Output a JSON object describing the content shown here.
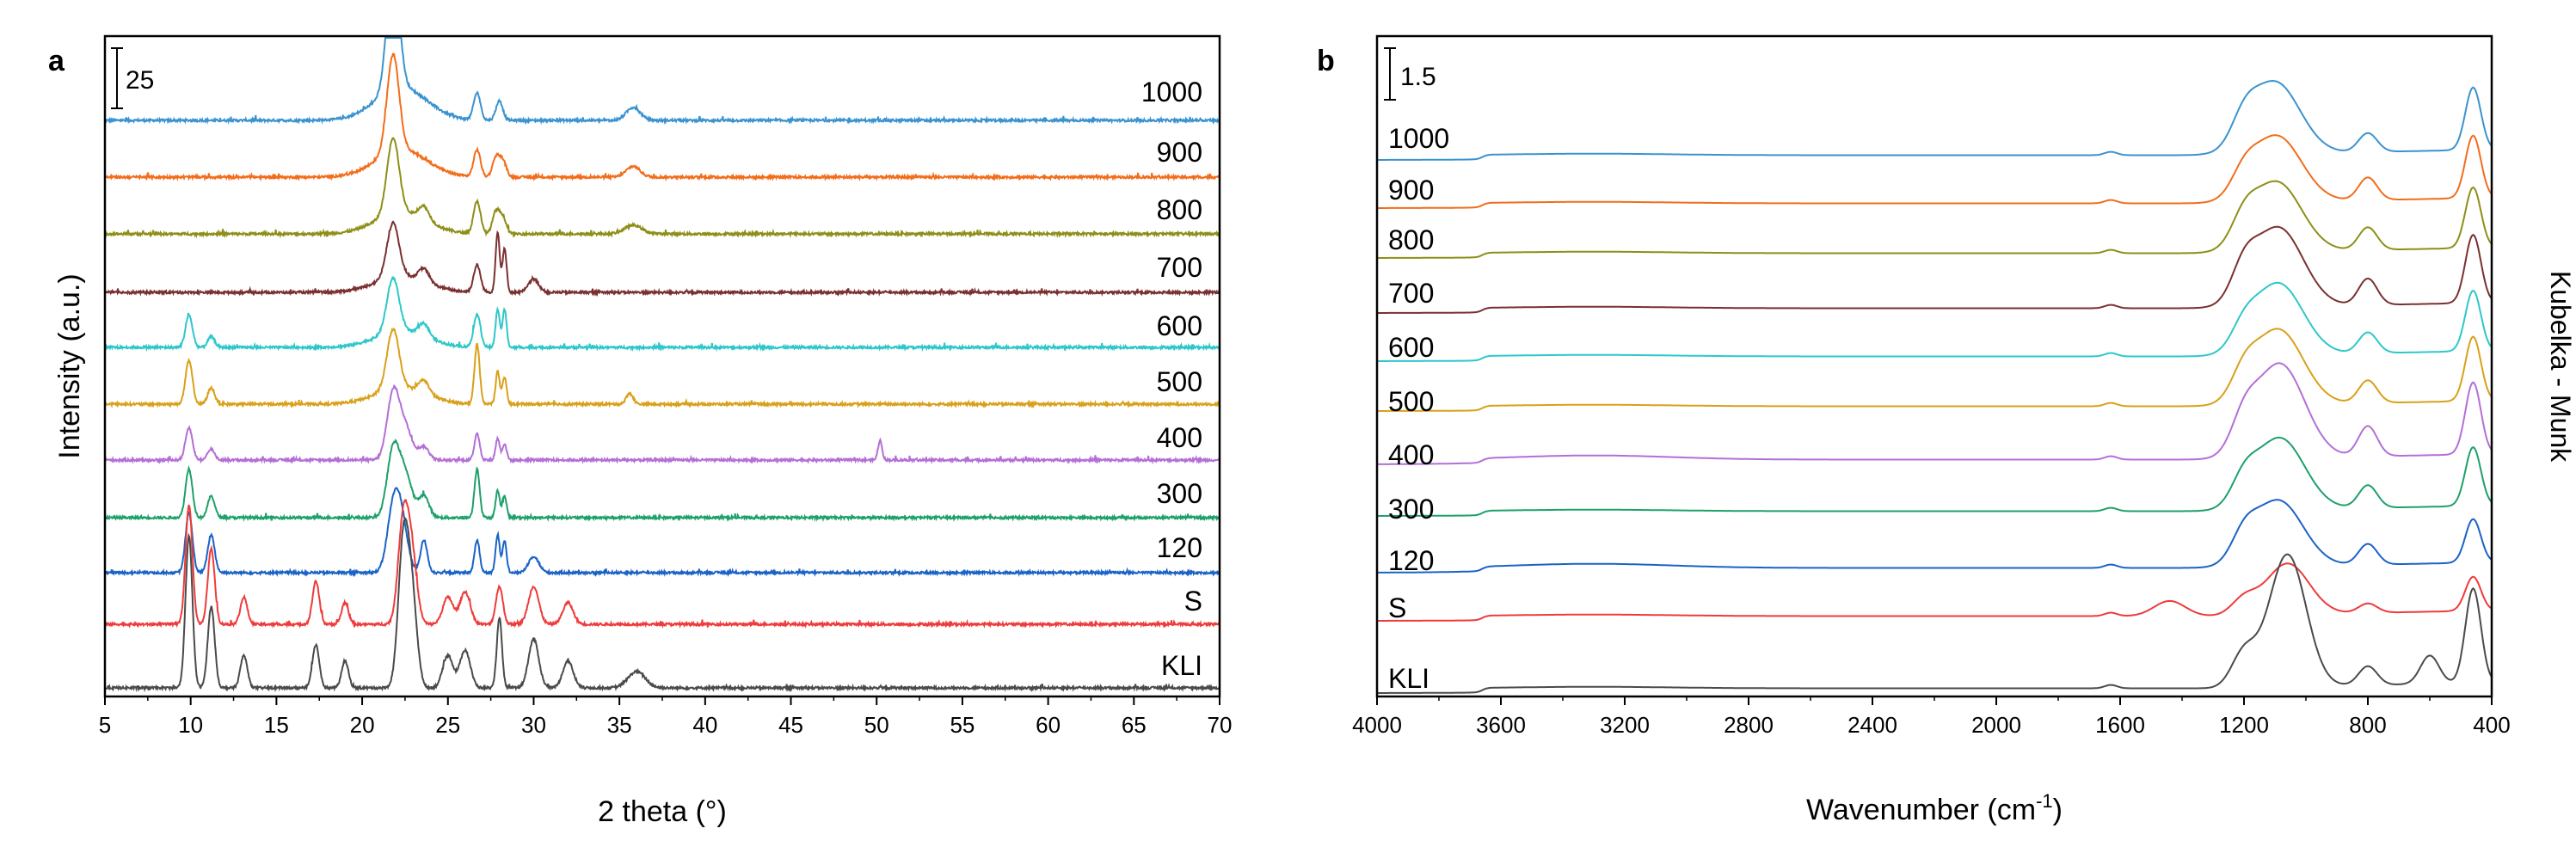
{
  "chart_data": [
    {
      "panel": "a",
      "type": "line",
      "xlabel": "2 theta (°)",
      "ylabel": "Intensity (a.u.)",
      "xlim": [
        5,
        70
      ],
      "xticks": [
        5,
        10,
        15,
        20,
        25,
        30,
        35,
        40,
        45,
        50,
        55,
        60,
        65,
        70
      ],
      "scale_bar": {
        "label": "25",
        "value": 25
      },
      "grid": false,
      "series": [
        {
          "name": "1000",
          "color": "#3a93cf",
          "baseline": 1000,
          "peaks": [
            [
              21.8,
              120,
              0.35
            ],
            [
              22.3,
              30,
              1.5
            ],
            [
              26.7,
              25,
              0.2
            ],
            [
              28.0,
              18,
              0.2
            ],
            [
              35.8,
              12,
              0.4
            ]
          ]
        },
        {
          "name": "900",
          "color": "#f26d1b",
          "baseline": 900,
          "peaks": [
            [
              21.8,
              90,
              0.35
            ],
            [
              22.3,
              25,
              1.5
            ],
            [
              26.7,
              25,
              0.2
            ],
            [
              27.8,
              18,
              0.2
            ],
            [
              28.2,
              15,
              0.2
            ],
            [
              35.8,
              10,
              0.4
            ]
          ]
        },
        {
          "name": "800",
          "color": "#8e8e18",
          "baseline": 800,
          "peaks": [
            [
              21.8,
              70,
              0.35
            ],
            [
              22.3,
              20,
              1.5
            ],
            [
              23.6,
              12,
              0.3
            ],
            [
              26.7,
              30,
              0.2
            ],
            [
              27.8,
              20,
              0.2
            ],
            [
              28.2,
              15,
              0.2
            ],
            [
              35.8,
              8,
              0.5
            ]
          ]
        },
        {
          "name": "700",
          "color": "#7a3030",
          "baseline": 700,
          "peaks": [
            [
              21.8,
              50,
              0.35
            ],
            [
              22.3,
              15,
              1.5
            ],
            [
              23.6,
              12,
              0.3
            ],
            [
              26.7,
              25,
              0.2
            ],
            [
              27.9,
              55,
              0.12
            ],
            [
              28.3,
              40,
              0.12
            ],
            [
              30.0,
              12,
              0.3
            ]
          ]
        },
        {
          "name": "600",
          "color": "#2ec7c9",
          "baseline": 600,
          "peaks": [
            [
              9.9,
              30,
              0.2
            ],
            [
              11.2,
              10,
              0.2
            ],
            [
              21.8,
              50,
              0.35
            ],
            [
              22.3,
              15,
              1.5
            ],
            [
              23.6,
              12,
              0.3
            ],
            [
              26.7,
              30,
              0.2
            ],
            [
              27.9,
              35,
              0.12
            ],
            [
              28.3,
              35,
              0.12
            ]
          ]
        },
        {
          "name": "500",
          "color": "#d9a01a",
          "baseline": 500,
          "peaks": [
            [
              9.9,
              40,
              0.2
            ],
            [
              11.2,
              15,
              0.2
            ],
            [
              21.8,
              55,
              0.35
            ],
            [
              22.3,
              15,
              1.5
            ],
            [
              23.6,
              12,
              0.3
            ],
            [
              26.7,
              55,
              0.15
            ],
            [
              27.9,
              30,
              0.12
            ],
            [
              28.3,
              25,
              0.12
            ],
            [
              35.6,
              10,
              0.2
            ]
          ]
        },
        {
          "name": "400",
          "color": "#b46fd6",
          "baseline": 400,
          "peaks": [
            [
              9.9,
              30,
              0.2
            ],
            [
              11.2,
              10,
              0.2
            ],
            [
              21.8,
              60,
              0.35
            ],
            [
              22.5,
              30,
              0.4
            ],
            [
              23.6,
              12,
              0.3
            ],
            [
              26.7,
              25,
              0.15
            ],
            [
              27.9,
              20,
              0.12
            ],
            [
              28.3,
              15,
              0.12
            ],
            [
              50.2,
              18,
              0.12
            ]
          ]
        },
        {
          "name": "300",
          "color": "#1ea06a",
          "baseline": 300,
          "peaks": [
            [
              9.9,
              45,
              0.2
            ],
            [
              11.2,
              20,
              0.2
            ],
            [
              21.8,
              60,
              0.35
            ],
            [
              22.5,
              40,
              0.4
            ],
            [
              23.6,
              20,
              0.3
            ],
            [
              26.7,
              45,
              0.15
            ],
            [
              27.9,
              25,
              0.12
            ],
            [
              28.3,
              20,
              0.12
            ]
          ]
        },
        {
          "name": "120",
          "color": "#1a63c6",
          "baseline": 120,
          "peaks": [
            [
              9.9,
              55,
              0.2
            ],
            [
              11.2,
              35,
              0.2
            ],
            [
              21.8,
              55,
              0.35
            ],
            [
              22.3,
              45,
              0.35
            ],
            [
              23.6,
              30,
              0.2
            ],
            [
              26.7,
              30,
              0.15
            ],
            [
              27.9,
              35,
              0.12
            ],
            [
              28.3,
              30,
              0.12
            ],
            [
              30.0,
              15,
              0.3
            ]
          ]
        },
        {
          "name": "S",
          "color": "#ee3b3b",
          "baseline": 0,
          "peaks": [
            [
              9.9,
              110,
              0.2
            ],
            [
              11.2,
              70,
              0.2
            ],
            [
              13.1,
              25,
              0.2
            ],
            [
              17.3,
              40,
              0.2
            ],
            [
              19.0,
              20,
              0.2
            ],
            [
              22.4,
              95,
              0.3
            ],
            [
              22.9,
              60,
              0.3
            ],
            [
              25.0,
              25,
              0.3
            ],
            [
              26.0,
              30,
              0.3
            ],
            [
              28.0,
              35,
              0.2
            ],
            [
              30.0,
              35,
              0.3
            ],
            [
              32.0,
              20,
              0.3
            ]
          ]
        },
        {
          "name": "KLI",
          "color": "#4a4a4a",
          "baseline": -120,
          "peaks": [
            [
              9.9,
              140,
              0.2
            ],
            [
              11.2,
              75,
              0.2
            ],
            [
              13.1,
              30,
              0.2
            ],
            [
              17.3,
              40,
              0.2
            ],
            [
              19.0,
              25,
              0.2
            ],
            [
              22.4,
              130,
              0.3
            ],
            [
              22.9,
              80,
              0.3
            ],
            [
              25.0,
              30,
              0.3
            ],
            [
              26.0,
              35,
              0.3
            ],
            [
              28.0,
              65,
              0.15
            ],
            [
              30.0,
              45,
              0.3
            ],
            [
              32.0,
              25,
              0.3
            ],
            [
              36.0,
              15,
              0.5
            ]
          ]
        }
      ]
    },
    {
      "panel": "b",
      "type": "line",
      "xlabel": "Wavenumber (cm-1)",
      "xlabel_main": "Wavenumber (cm",
      "xlabel_sup": "-1",
      "xlabel_end": ")",
      "ylabel": "Kubelka - Munk",
      "xlim": [
        4000,
        400
      ],
      "xticks": [
        4000,
        3600,
        3200,
        2800,
        2400,
        2000,
        1600,
        1200,
        800,
        400
      ],
      "scale_bar": {
        "label": "1.5",
        "value": 1.5
      },
      "grid": false,
      "series": [
        {
          "name": "1000",
          "color": "#3a93cf",
          "baseline": 1000,
          "peaks": [
            [
              1100,
              3.8,
              80
            ],
            [
              1200,
              1.2,
              40
            ],
            [
              800,
              1.0,
              30
            ],
            [
              460,
              3.3,
              25
            ]
          ]
        },
        {
          "name": "900",
          "color": "#f26d1b",
          "baseline": 900,
          "peaks": [
            [
              1095,
              3.5,
              80
            ],
            [
              1200,
              1.0,
              40
            ],
            [
              800,
              1.2,
              30
            ],
            [
              460,
              3.3,
              25
            ]
          ]
        },
        {
          "name": "800",
          "color": "#8e8e18",
          "baseline": 800,
          "peaks": [
            [
              1095,
              3.7,
              80
            ],
            [
              1200,
              1.2,
              40
            ],
            [
              800,
              1.2,
              30
            ],
            [
              460,
              3.2,
              25
            ]
          ]
        },
        {
          "name": "700",
          "color": "#7a3030",
          "baseline": 700,
          "peaks": [
            [
              1090,
              4.2,
              80
            ],
            [
              1200,
              1.5,
              40
            ],
            [
              800,
              1.4,
              30
            ],
            [
              460,
              3.6,
              25
            ]
          ]
        },
        {
          "name": "600",
          "color": "#2ec7c9",
          "baseline": 600,
          "peaks": [
            [
              1090,
              3.8,
              80
            ],
            [
              1200,
              1.0,
              40
            ],
            [
              800,
              1.1,
              30
            ],
            [
              460,
              3.2,
              25
            ]
          ]
        },
        {
          "name": "500",
          "color": "#d9a01a",
          "baseline": 500,
          "peaks": [
            [
              1090,
              4.0,
              80
            ],
            [
              1200,
              1.2,
              40
            ],
            [
              800,
              1.2,
              30
            ],
            [
              460,
              3.4,
              25
            ]
          ]
        },
        {
          "name": "400",
          "color": "#b46fd6",
          "baseline": 400,
          "peaks": [
            [
              1085,
              5.0,
              80
            ],
            [
              1200,
              1.5,
              40
            ],
            [
              800,
              1.6,
              30
            ],
            [
              460,
              3.8,
              25
            ]
          ]
        },
        {
          "name": "300",
          "color": "#1ea06a",
          "baseline": 300,
          "peaks": [
            [
              1085,
              3.8,
              80
            ],
            [
              1200,
              1.2,
              40
            ],
            [
              800,
              1.2,
              30
            ],
            [
              460,
              3.1,
              25
            ]
          ]
        },
        {
          "name": "120",
          "color": "#1a63c6",
          "baseline": 120,
          "peaks": [
            [
              1090,
              3.5,
              80
            ],
            [
              1200,
              1.2,
              40
            ],
            [
              800,
              1.1,
              30
            ],
            [
              460,
              2.3,
              25
            ]
          ]
        },
        {
          "name": "S",
          "color": "#ee3b3b",
          "baseline": 0,
          "peaks": [
            [
              1060,
              2.7,
              70
            ],
            [
              1200,
              0.8,
              40
            ],
            [
              1440,
              0.8,
              50
            ],
            [
              800,
              0.5,
              30
            ],
            [
              460,
              1.8,
              25
            ]
          ]
        },
        {
          "name": "KLI",
          "color": "#4a4a4a",
          "baseline": -120,
          "peaks": [
            [
              1060,
              7.0,
              60
            ],
            [
              1200,
              1.8,
              40
            ],
            [
              800,
              1.0,
              30
            ],
            [
              600,
              1.5,
              30
            ],
            [
              460,
              5.0,
              25
            ]
          ]
        }
      ]
    }
  ],
  "panels": {
    "a": {
      "letter": "a"
    },
    "b": {
      "letter": "b"
    }
  }
}
